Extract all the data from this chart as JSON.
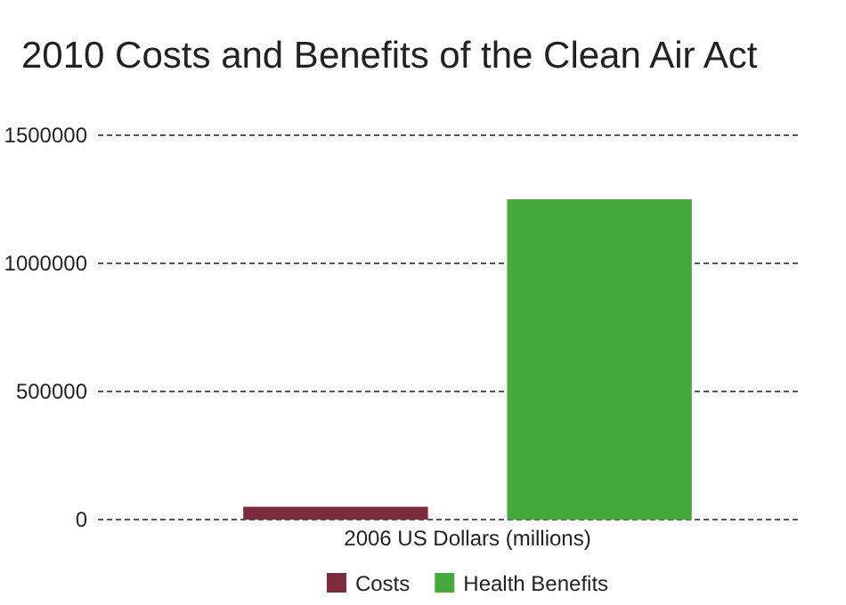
{
  "chart_data": {
    "type": "bar",
    "title": "2010 Costs and Benefits of the Clean Air Act",
    "categories": [
      "2006 US Dollars (millions)"
    ],
    "series": [
      {
        "name": "Costs",
        "color": "#7b2b3c",
        "values": [
          50000
        ]
      },
      {
        "name": "Health Benefits",
        "color": "#44aa3c",
        "values": [
          1250000
        ]
      }
    ],
    "ylim": [
      0,
      1500000
    ],
    "yticks": [
      0,
      500000,
      1000000,
      1500000
    ],
    "grid": "y",
    "legend": "bottom"
  }
}
